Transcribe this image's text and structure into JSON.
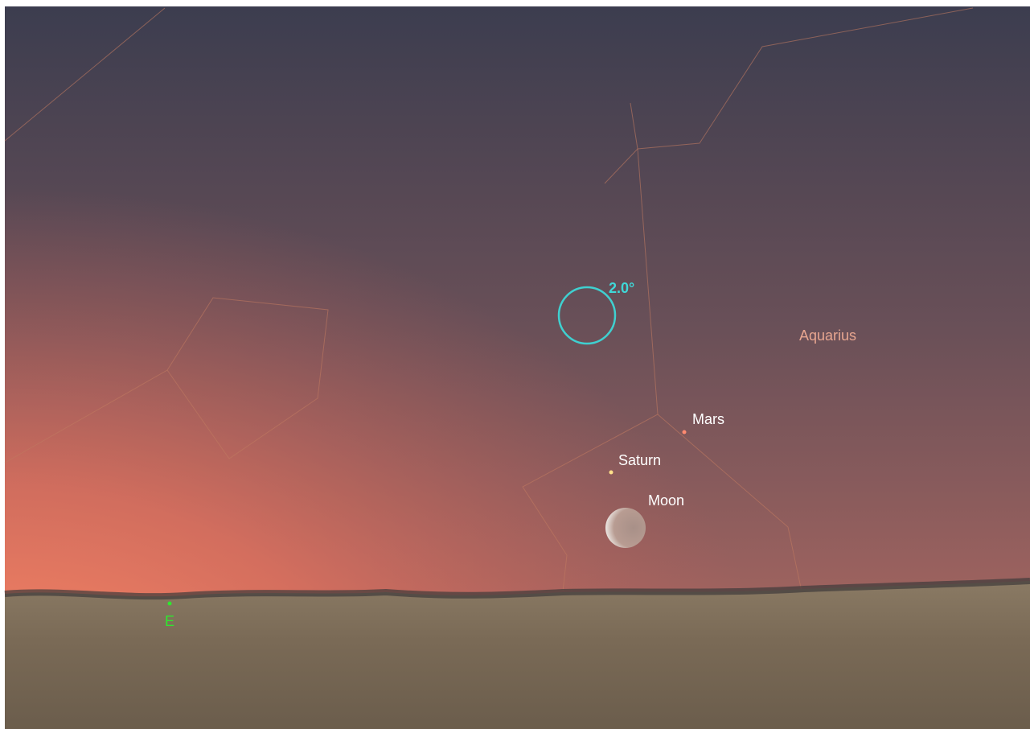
{
  "fov_circle": {
    "label": "2.0°"
  },
  "constellation": {
    "label": "Aquarius"
  },
  "objects": [
    {
      "label": "Mars"
    },
    {
      "label": "Saturn"
    },
    {
      "label": "Moon"
    }
  ],
  "compass": {
    "label": "E"
  }
}
